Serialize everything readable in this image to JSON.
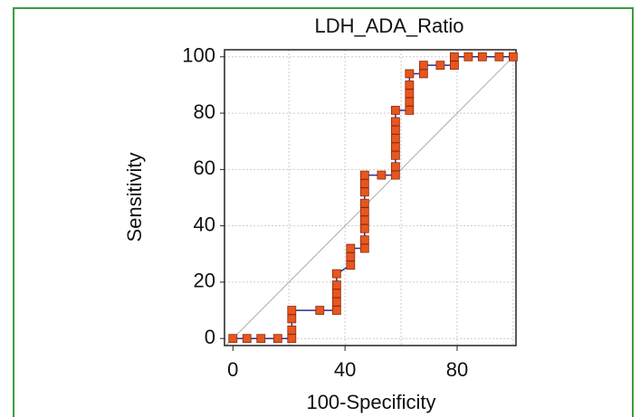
{
  "chart_data": {
    "type": "line",
    "title": "LDH_ADA_Ratio",
    "x_label": "100-Specificity",
    "y_label": "Sensitivity",
    "x": [
      0,
      5,
      10,
      16,
      21,
      21,
      21,
      21,
      31,
      37,
      37,
      37,
      37,
      37,
      42,
      42,
      42,
      47,
      47,
      47,
      47,
      47,
      47,
      47,
      47,
      47,
      53,
      58,
      58,
      58,
      58,
      58,
      58,
      58,
      58,
      63,
      63,
      63,
      63,
      63,
      68,
      68,
      74,
      79,
      79,
      84,
      89,
      95,
      100
    ],
    "series": [
      {
        "color": "#e8561f",
        "line_color": "#2b2f8f",
        "values": [
          0,
          0,
          0,
          0,
          0,
          3,
          7,
          10,
          10,
          10,
          13,
          16,
          19,
          23,
          26,
          29,
          32,
          32,
          35,
          39,
          42,
          45,
          48,
          52,
          55,
          58,
          58,
          58,
          61,
          65,
          68,
          71,
          74,
          77,
          81,
          81,
          84,
          87,
          90,
          94,
          94,
          97,
          97,
          97,
          100,
          100,
          100,
          100,
          100
        ]
      }
    ],
    "xlim": [
      -3,
      101
    ],
    "ylim": [
      -2.5,
      102.5
    ],
    "xticks": [
      0,
      40,
      80
    ],
    "yticks": [
      0,
      20,
      40,
      60,
      80,
      100
    ],
    "xgrid": [
      20,
      40,
      60,
      80,
      100
    ],
    "grid": true,
    "diagonal": true
  }
}
